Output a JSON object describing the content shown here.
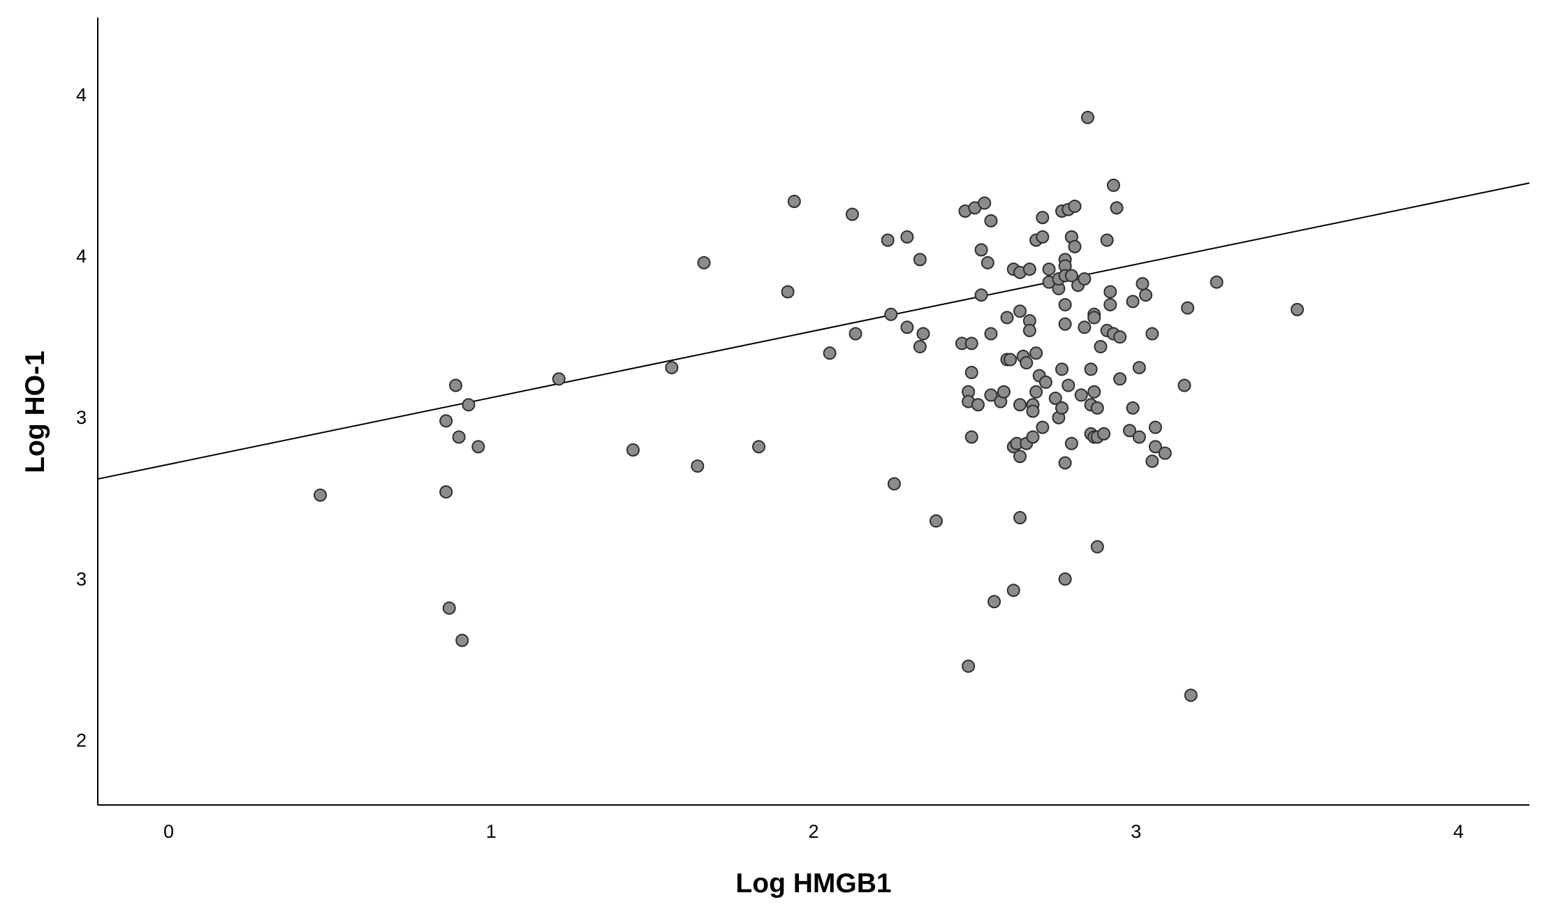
{
  "chart_data": {
    "type": "scatter",
    "title": "",
    "xlabel": "Log HMGB1",
    "ylabel": "Log HO-1",
    "xlim": [
      -0.22,
      4.22
    ],
    "ylim": [
      1.8,
      4.24
    ],
    "x_ticks": [
      0,
      1,
      2,
      3,
      4
    ],
    "x_tick_labels": [
      "0",
      "1",
      "2",
      "3",
      "4"
    ],
    "y_ticks": [
      2.0,
      2.5,
      3.0,
      3.5,
      4.0
    ],
    "y_tick_labels": [
      "2",
      "3",
      "3",
      "4",
      "4"
    ],
    "grid": false,
    "legend": "none",
    "marker_color": "#8c8c8c",
    "marker_edge_color": "#2e2e2e",
    "fit_line": {
      "type": "linear",
      "x": [
        -0.22,
        4.22
      ],
      "y": [
        2.81,
        3.727
      ],
      "color": "#000000"
    },
    "series": [
      {
        "points": [
          [
            0.47,
            2.76
          ],
          [
            0.86,
            2.77
          ],
          [
            0.86,
            2.99
          ],
          [
            0.89,
            3.1
          ],
          [
            0.9,
            2.94
          ],
          [
            0.93,
            3.04
          ],
          [
            0.96,
            2.91
          ],
          [
            0.87,
            2.41
          ],
          [
            0.91,
            2.31
          ],
          [
            1.21,
            3.12
          ],
          [
            1.44,
            2.9
          ],
          [
            1.56,
            3.155
          ],
          [
            1.64,
            2.85
          ],
          [
            1.66,
            3.48
          ],
          [
            1.83,
            2.91
          ],
          [
            1.92,
            3.39
          ],
          [
            1.94,
            3.67
          ],
          [
            2.05,
            3.2
          ],
          [
            2.12,
            3.63
          ],
          [
            2.13,
            3.26
          ],
          [
            2.23,
            3.55
          ],
          [
            2.24,
            3.32
          ],
          [
            2.25,
            2.795
          ],
          [
            2.29,
            3.56
          ],
          [
            2.29,
            3.28
          ],
          [
            2.33,
            3.49
          ],
          [
            2.33,
            3.22
          ],
          [
            2.34,
            3.26
          ],
          [
            2.38,
            2.68
          ],
          [
            2.46,
            3.23
          ],
          [
            2.47,
            3.64
          ],
          [
            2.48,
            3.08
          ],
          [
            2.48,
            3.05
          ],
          [
            2.48,
            2.23
          ],
          [
            2.49,
            3.23
          ],
          [
            2.49,
            3.14
          ],
          [
            2.49,
            2.94
          ],
          [
            2.5,
            3.65
          ],
          [
            2.51,
            3.04
          ],
          [
            2.52,
            3.52
          ],
          [
            2.52,
            3.38
          ],
          [
            2.53,
            3.665
          ],
          [
            2.54,
            3.48
          ],
          [
            2.55,
            3.61
          ],
          [
            2.55,
            3.26
          ],
          [
            2.55,
            3.07
          ],
          [
            2.56,
            2.43
          ],
          [
            2.58,
            3.05
          ],
          [
            2.59,
            3.08
          ],
          [
            2.6,
            3.18
          ],
          [
            2.6,
            3.31
          ],
          [
            2.61,
            3.18
          ],
          [
            2.62,
            3.46
          ],
          [
            2.62,
            2.91
          ],
          [
            2.62,
            2.465
          ],
          [
            2.63,
            2.92
          ],
          [
            2.64,
            3.45
          ],
          [
            2.64,
            3.33
          ],
          [
            2.64,
            3.04
          ],
          [
            2.64,
            2.88
          ],
          [
            2.64,
            2.69
          ],
          [
            2.65,
            3.19
          ],
          [
            2.66,
            3.17
          ],
          [
            2.66,
            2.92
          ],
          [
            2.67,
            3.46
          ],
          [
            2.67,
            3.3
          ],
          [
            2.67,
            3.27
          ],
          [
            2.68,
            3.04
          ],
          [
            2.68,
            3.02
          ],
          [
            2.68,
            2.94
          ],
          [
            2.69,
            3.2
          ],
          [
            2.69,
            3.08
          ],
          [
            2.69,
            3.55
          ],
          [
            2.7,
            3.13
          ],
          [
            2.71,
            3.56
          ],
          [
            2.71,
            2.97
          ],
          [
            2.71,
            3.62
          ],
          [
            2.72,
            3.11
          ],
          [
            2.73,
            3.42
          ],
          [
            2.73,
            3.46
          ],
          [
            2.75,
            3.06
          ],
          [
            2.76,
            3.4
          ],
          [
            2.76,
            3.0
          ],
          [
            2.76,
            3.43
          ],
          [
            2.77,
            3.64
          ],
          [
            2.77,
            3.15
          ],
          [
            2.77,
            3.03
          ],
          [
            2.78,
            3.49
          ],
          [
            2.78,
            3.47
          ],
          [
            2.78,
            3.29
          ],
          [
            2.78,
            3.44
          ],
          [
            2.78,
            2.86
          ],
          [
            2.78,
            2.5
          ],
          [
            2.78,
            3.35
          ],
          [
            2.79,
            3.1
          ],
          [
            2.79,
            3.645
          ],
          [
            2.8,
            3.56
          ],
          [
            2.8,
            3.44
          ],
          [
            2.8,
            2.92
          ],
          [
            2.8,
            3.56
          ],
          [
            2.81,
            3.53
          ],
          [
            2.81,
            3.655
          ],
          [
            2.82,
            3.41
          ],
          [
            2.83,
            3.07
          ],
          [
            2.84,
            3.43
          ],
          [
            2.84,
            3.28
          ],
          [
            2.85,
            3.93
          ],
          [
            2.86,
            3.15
          ],
          [
            2.86,
            3.04
          ],
          [
            2.86,
            2.95
          ],
          [
            2.87,
            3.32
          ],
          [
            2.87,
            3.31
          ],
          [
            2.87,
            3.08
          ],
          [
            2.87,
            2.94
          ],
          [
            2.88,
            3.03
          ],
          [
            2.88,
            2.94
          ],
          [
            2.88,
            2.6
          ],
          [
            2.89,
            3.22
          ],
          [
            2.9,
            2.95
          ],
          [
            2.91,
            3.55
          ],
          [
            2.91,
            3.27
          ],
          [
            2.92,
            3.39
          ],
          [
            2.92,
            3.35
          ],
          [
            2.93,
            3.72
          ],
          [
            2.93,
            3.26
          ],
          [
            2.94,
            3.65
          ],
          [
            2.95,
            3.25
          ],
          [
            2.95,
            3.12
          ],
          [
            2.98,
            2.96
          ],
          [
            2.99,
            3.36
          ],
          [
            2.99,
            3.03
          ],
          [
            3.01,
            2.94
          ],
          [
            3.01,
            3.155
          ],
          [
            3.02,
            3.415
          ],
          [
            3.03,
            3.38
          ],
          [
            3.05,
            3.26
          ],
          [
            3.05,
            2.865
          ],
          [
            3.06,
            2.97
          ],
          [
            3.06,
            2.91
          ],
          [
            3.09,
            2.89
          ],
          [
            3.15,
            3.1
          ],
          [
            3.16,
            3.34
          ],
          [
            3.17,
            2.14
          ],
          [
            3.25,
            3.42
          ],
          [
            3.5,
            3.335
          ]
        ]
      }
    ]
  }
}
